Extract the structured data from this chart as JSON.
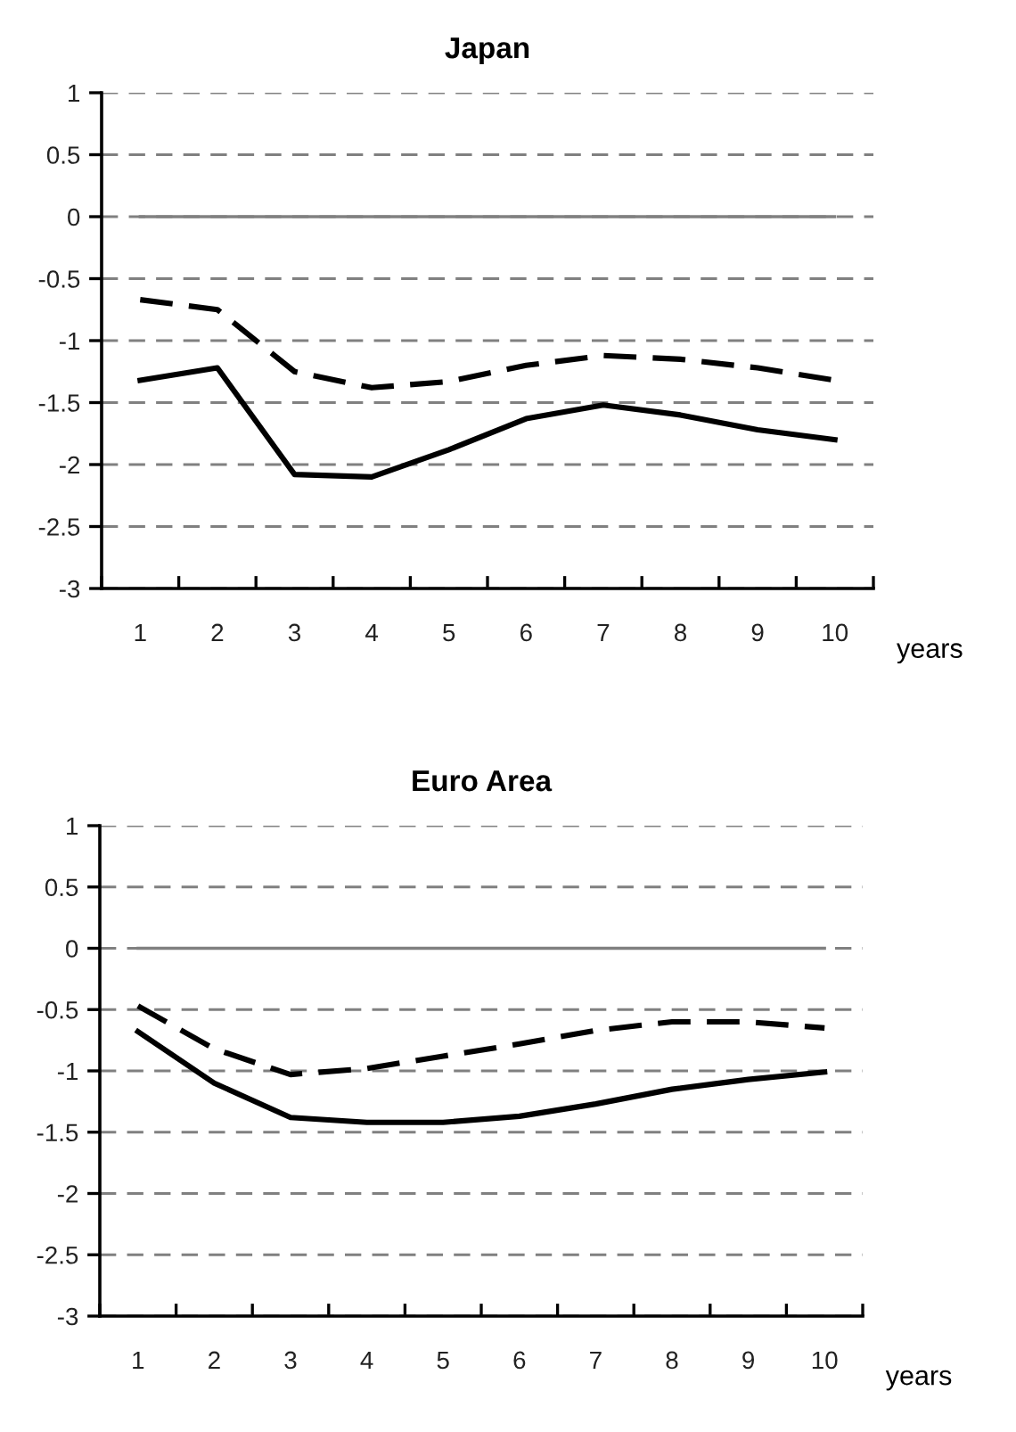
{
  "chart_data": [
    {
      "type": "line",
      "title": "Japan",
      "xlabel": "years",
      "categories": [
        "1",
        "2",
        "3",
        "4",
        "5",
        "6",
        "7",
        "8",
        "9",
        "10"
      ],
      "series": [
        {
          "color": "#000000",
          "line_style": "solid",
          "values": [
            -1.32,
            -1.22,
            -2.08,
            -2.1,
            -1.88,
            -1.63,
            -1.52,
            -1.6,
            -1.72,
            -1.8
          ]
        },
        {
          "color": "#000000",
          "line_style": "dashed",
          "values": [
            -0.67,
            -0.75,
            -1.25,
            -1.38,
            -1.33,
            -1.2,
            -1.12,
            -1.15,
            -1.22,
            -1.32
          ]
        }
      ],
      "ylim": [
        -3,
        1
      ],
      "yticks": [
        -3,
        -2.5,
        -2,
        -1.5,
        -1,
        -0.5,
        0,
        0.5,
        1
      ],
      "grid": "y",
      "ref_lines": [
        {
          "axis": "y",
          "value": 0,
          "color": "#808080",
          "line_style": "solid"
        }
      ]
    },
    {
      "type": "line",
      "title": "Euro Area",
      "xlabel": "years",
      "categories": [
        "1",
        "2",
        "3",
        "4",
        "5",
        "6",
        "7",
        "8",
        "9",
        "10"
      ],
      "series": [
        {
          "color": "#000000",
          "line_style": "solid",
          "values": [
            -0.68,
            -1.1,
            -1.38,
            -1.42,
            -1.42,
            -1.37,
            -1.27,
            -1.15,
            -1.07,
            -1.01
          ]
        },
        {
          "color": "#000000",
          "line_style": "dashed",
          "values": [
            -0.47,
            -0.82,
            -1.03,
            -0.98,
            -0.88,
            -0.78,
            -0.67,
            -0.6,
            -0.6,
            -0.65
          ]
        }
      ],
      "ylim": [
        -3,
        1
      ],
      "yticks": [
        -3,
        -2.5,
        -2,
        -1.5,
        -1,
        -0.5,
        0,
        0.5,
        1
      ],
      "grid": "y",
      "ref_lines": [
        {
          "axis": "y",
          "value": 0,
          "color": "#808080",
          "line_style": "solid"
        }
      ]
    }
  ]
}
